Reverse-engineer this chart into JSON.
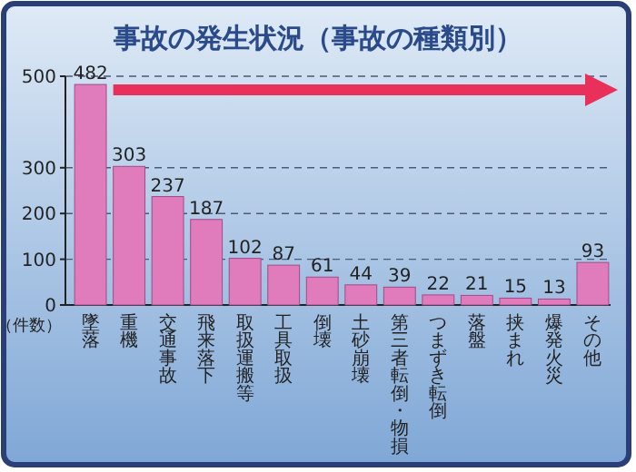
{
  "chart_data": {
    "type": "bar",
    "title": "事故の発生状況（事故の種類別）",
    "ylabel": "（件数）",
    "categories": [
      "墜落",
      "重機",
      "交通事故",
      "飛来落下",
      "取扱運搬等",
      "工具取扱",
      "倒壊",
      "土砂崩壊",
      "第三者転倒・物損",
      "つまずき転倒",
      "落盤",
      "挟まれ",
      "爆発火災",
      "その他"
    ],
    "values": [
      482,
      303,
      237,
      187,
      102,
      87,
      61,
      44,
      39,
      22,
      21,
      15,
      13,
      93
    ],
    "color": "#e07cbc",
    "ylim": [
      0,
      500
    ],
    "yticks": [
      0,
      100,
      200,
      300,
      500
    ],
    "grid": "y",
    "data_labels": true
  }
}
